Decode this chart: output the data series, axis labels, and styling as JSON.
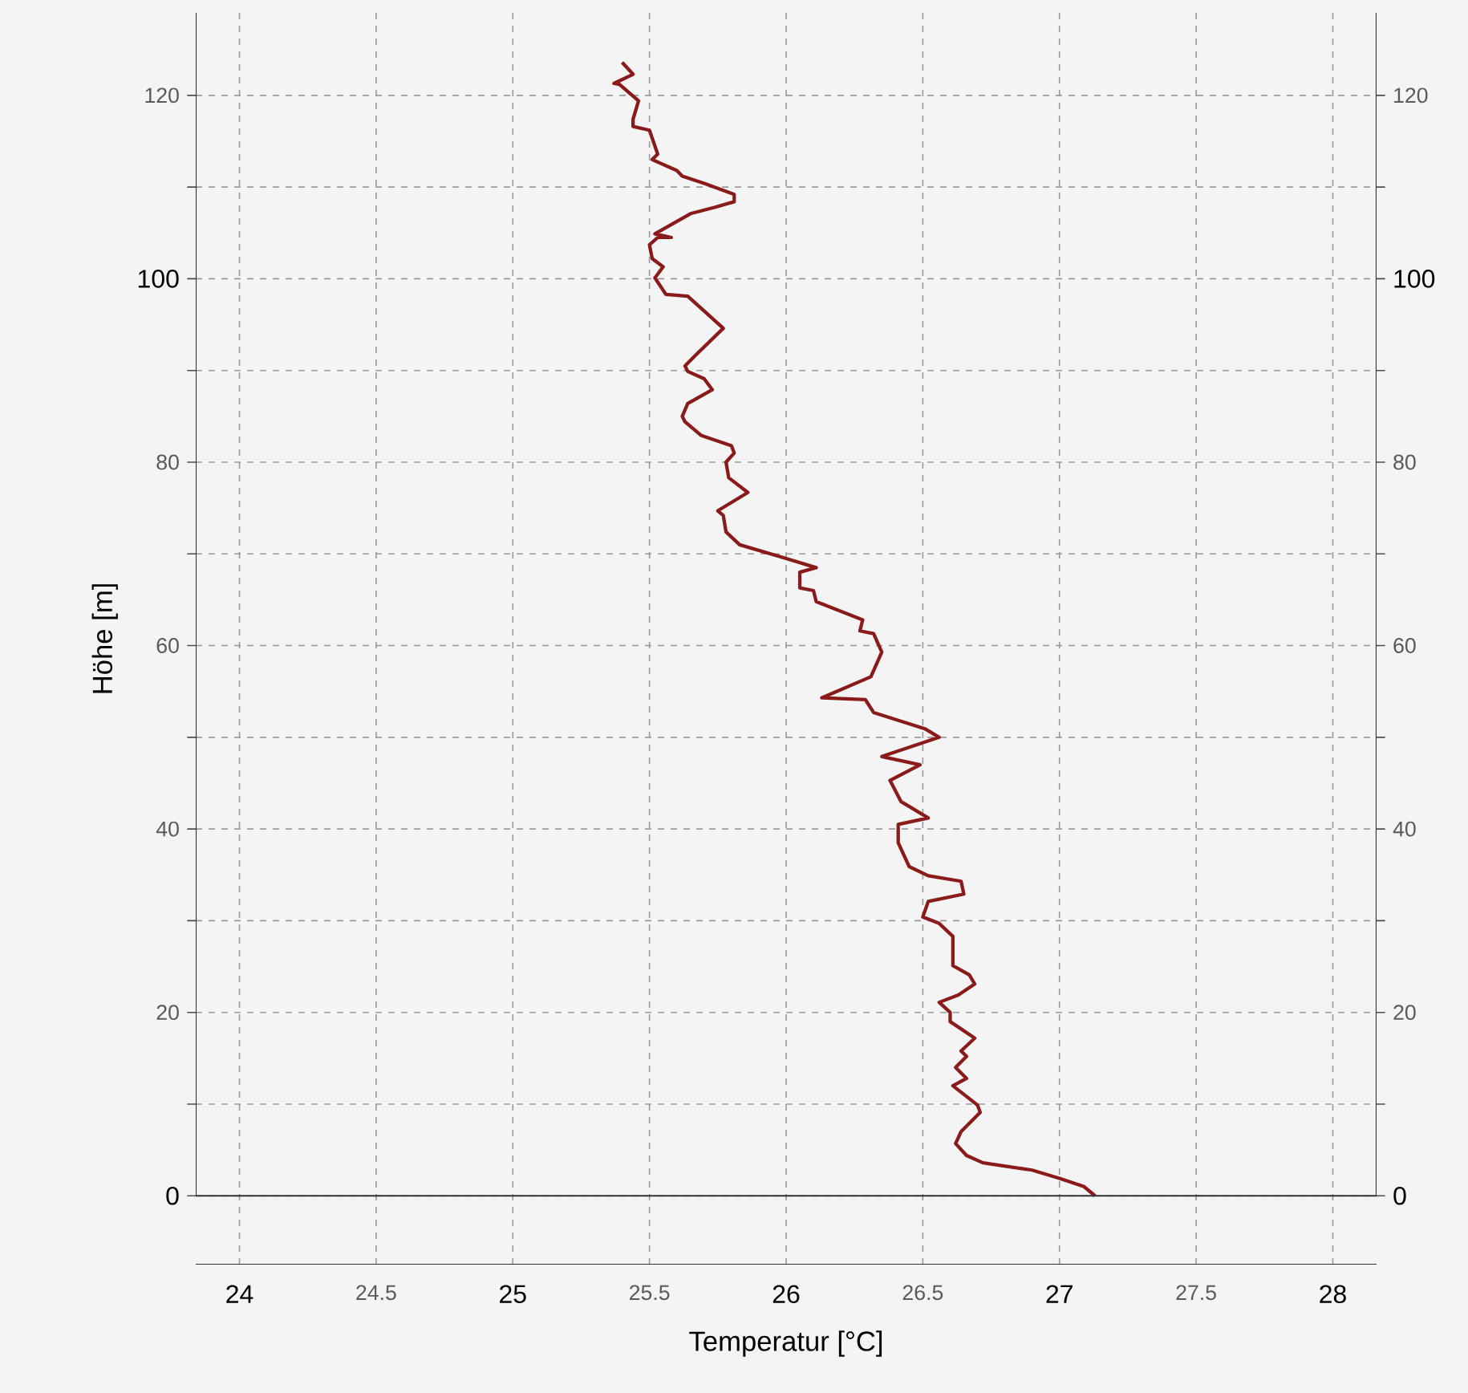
{
  "chart_data": {
    "type": "line",
    "xlabel": "Temperatur [°C]",
    "ylabel": "Höhe [m]",
    "xlim": [
      23.84,
      28.16
    ],
    "ylim": [
      -7.5,
      129
    ],
    "xticks": [
      24,
      24.5,
      25,
      25.5,
      26,
      26.5,
      27,
      27.5,
      28
    ],
    "yticks": [
      0,
      {
        "value": 10,
        "label": null
      },
      20,
      {
        "value": 30,
        "label": null
      },
      40,
      {
        "value": 50,
        "label": null
      },
      60,
      {
        "value": 70,
        "label": null
      },
      80,
      {
        "value": 90,
        "label": null
      },
      100,
      {
        "value": 110,
        "label": null
      },
      120
    ],
    "y2lim": [
      -7.5,
      129
    ],
    "y2ticks": [
      0,
      {
        "value": 10,
        "label": null
      },
      20,
      {
        "value": 30,
        "label": null
      },
      40,
      {
        "value": 50,
        "label": null
      },
      60,
      {
        "value": 70,
        "label": null
      },
      80,
      {
        "value": 90,
        "label": null
      },
      100,
      {
        "value": 110,
        "label": null
      },
      120
    ],
    "grid": true,
    "ref_lines": [
      {
        "axis": "y",
        "value": 0,
        "color": "#333333"
      }
    ],
    "series": [
      {
        "color": "#8b1a1a",
        "x": [
          27.13,
          27.09,
          27.0,
          26.9,
          26.72,
          26.66,
          26.62,
          26.64,
          26.71,
          26.7,
          26.61,
          26.66,
          26.62,
          26.66,
          26.64,
          26.69,
          26.6,
          26.6,
          26.56,
          26.63,
          26.69,
          26.67,
          26.61,
          26.61,
          26.56,
          26.5,
          26.52,
          26.65,
          26.64,
          26.52,
          26.45,
          26.41,
          26.41,
          26.52,
          26.42,
          26.38,
          26.49,
          26.35,
          26.56,
          26.51,
          26.32,
          26.29,
          26.13,
          26.31,
          26.35,
          26.32,
          26.27,
          26.28,
          26.11,
          26.1,
          26.05,
          26.05,
          26.11,
          26.0,
          25.83,
          25.78,
          25.77,
          25.75,
          25.86,
          25.79,
          25.78,
          25.81,
          25.8,
          25.69,
          25.63,
          25.62,
          25.64,
          25.73,
          25.7,
          25.64,
          25.63,
          25.67,
          25.77,
          25.64,
          25.56,
          25.52,
          25.55,
          25.51,
          25.5,
          25.53,
          25.58,
          25.52,
          25.65,
          25.74,
          25.81,
          25.81,
          25.7,
          25.62,
          25.6,
          25.51,
          25.53,
          25.5,
          25.44,
          25.44,
          25.46,
          25.39,
          25.37,
          25.44,
          25.4
        ],
        "values": [
          0,
          1.0,
          1.9,
          2.8,
          3.6,
          4.4,
          5.7,
          7.0,
          9.1,
          9.9,
          12.0,
          12.8,
          14.0,
          15.2,
          15.8,
          17.2,
          19.0,
          20.0,
          21.1,
          21.9,
          23.1,
          24.1,
          25.1,
          28.3,
          29.7,
          30.4,
          32.1,
          32.9,
          34.3,
          34.9,
          35.9,
          38.5,
          40.5,
          41.2,
          43.0,
          45.3,
          47.0,
          47.9,
          50.0,
          50.9,
          52.7,
          54.1,
          54.3,
          56.6,
          59.3,
          61.3,
          61.6,
          62.8,
          64.8,
          66.0,
          66.3,
          68.0,
          68.5,
          69.5,
          71.0,
          72.4,
          74.2,
          74.7,
          76.7,
          78.3,
          80.0,
          81.0,
          81.8,
          82.9,
          84.4,
          85.0,
          86.4,
          87.9,
          89.1,
          89.9,
          90.5,
          91.7,
          94.6,
          98.1,
          98.3,
          100.1,
          101.3,
          102.2,
          103.7,
          104.5,
          104.5,
          104.9,
          107.1,
          107.8,
          108.4,
          109.2,
          110.4,
          111.2,
          111.8,
          113.0,
          113.6,
          116.2,
          116.6,
          117.4,
          119.4,
          121.2,
          121.3,
          122.3,
          123.6
        ]
      }
    ]
  }
}
